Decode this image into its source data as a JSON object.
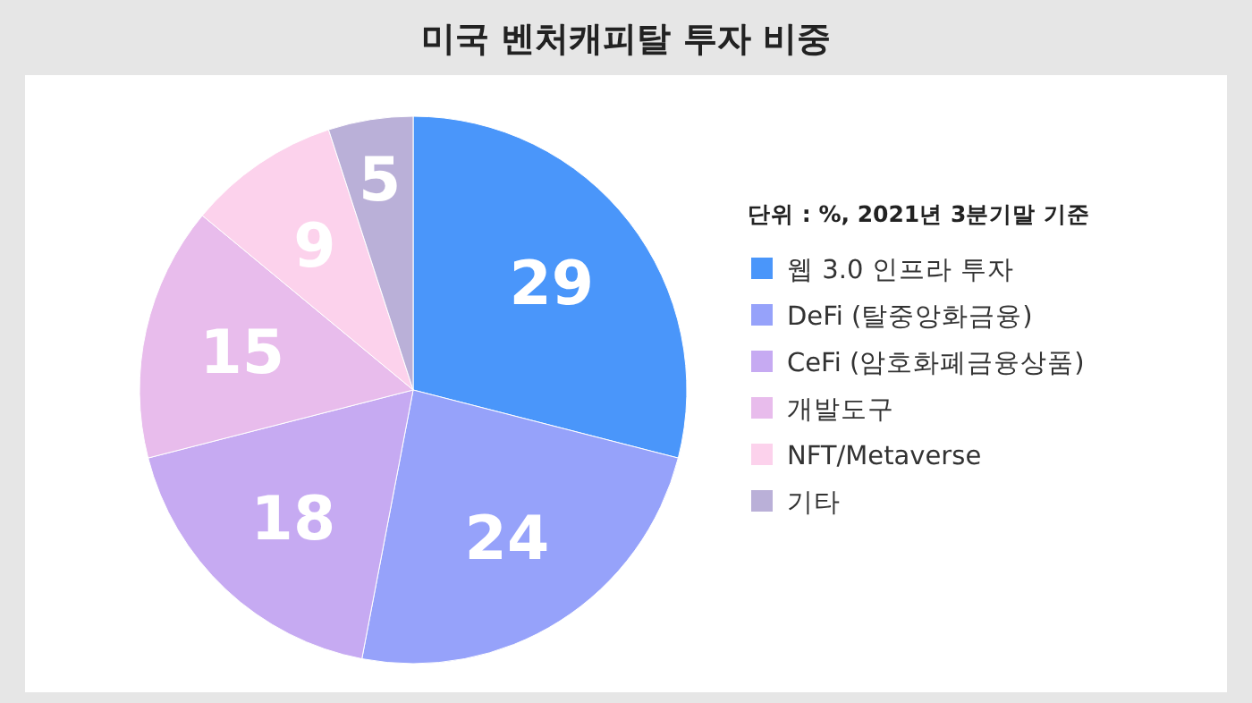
{
  "chart_data": {
    "type": "pie",
    "title": "미국 벤처캐피탈 투자 비중",
    "legend_title": "단위 : %, 2021년 3분기말 기준",
    "categories": [
      "웹 3.0 인프라 투자",
      "DeFi (탈중앙화금융)",
      "CeFi (암호화폐금융상품)",
      "개발도구",
      "NFT/Metaverse",
      "기타"
    ],
    "values": [
      29,
      24,
      18,
      15,
      9,
      5
    ],
    "colors": [
      "#4a96fa",
      "#96a2fa",
      "#c6aaf2",
      "#e8bcec",
      "#fcd2ec",
      "#bab0d8"
    ],
    "data_labels": true,
    "legend": "right"
  }
}
